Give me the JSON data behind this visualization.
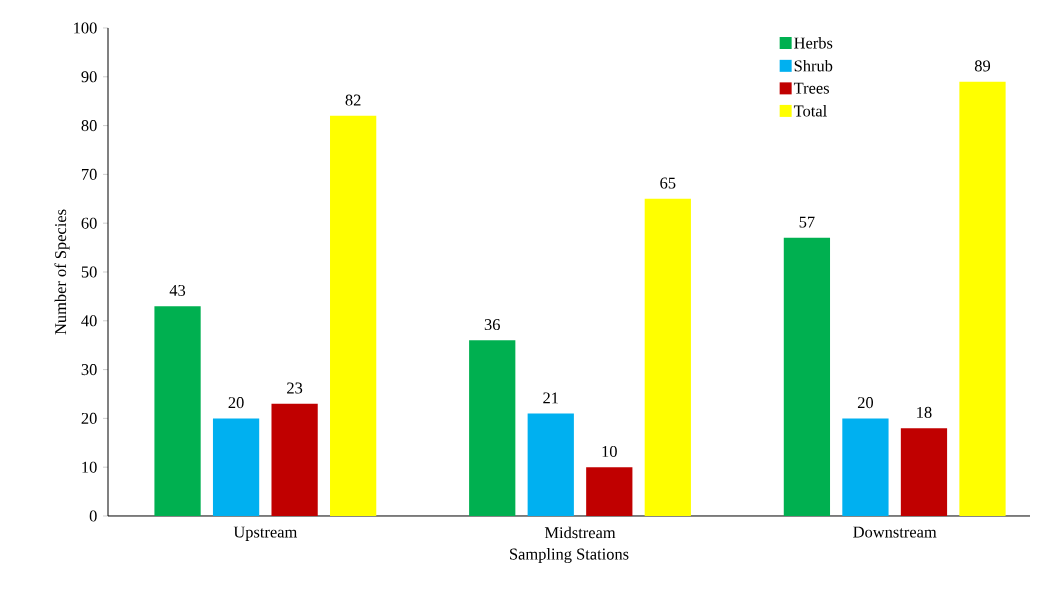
{
  "chart_data": {
    "type": "bar",
    "xlabel": "Sampling Stations",
    "ylabel": "Number of Species",
    "categories": [
      "Upstream",
      "Midstream",
      "Downstream"
    ],
    "series": [
      {
        "name": "Herbs",
        "color": "#00b050",
        "values": [
          43,
          36,
          57
        ]
      },
      {
        "name": "Shrub",
        "color": "#00b0f0",
        "values": [
          20,
          21,
          20
        ]
      },
      {
        "name": "Trees",
        "color": "#c00000",
        "values": [
          23,
          10,
          18
        ]
      },
      {
        "name": "Total",
        "color": "#ffff00",
        "values": [
          82,
          65,
          89
        ]
      }
    ],
    "ylim": [
      0,
      100
    ],
    "yticks": [
      0,
      10,
      20,
      30,
      40,
      50,
      60,
      70,
      80,
      90,
      100
    ],
    "grid": false,
    "legend": "top right",
    "data_labels": true
  }
}
